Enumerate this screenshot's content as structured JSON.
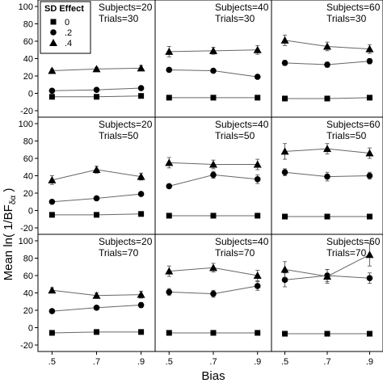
{
  "chart_data": {
    "type": "line",
    "xlabel": "Bias",
    "ylabel_prefix": "Mean ln( 1/BF",
    "ylabel_sub": "δα",
    "ylabel_suffix": " )",
    "x_ticks": [
      ".5",
      ".7",
      ".9"
    ],
    "x_values": [
      0.5,
      0.7,
      0.9
    ],
    "ylim": [
      -20,
      100
    ],
    "y_ticks": [
      -20,
      0,
      20,
      40,
      60,
      80,
      100
    ],
    "legend": {
      "title": "SD Effect",
      "entries": [
        {
          "label": "0",
          "marker": "square"
        },
        {
          "label": ".2",
          "marker": "circle"
        },
        {
          "label": ".4",
          "marker": "triangle"
        }
      ],
      "placement": "top-left"
    },
    "panels": [
      {
        "subjects_label": "Subjects=20",
        "trials_label": "Trials=30",
        "series": [
          {
            "marker": "square",
            "values": [
              -4,
              -4,
              -3
            ],
            "err": [
              1,
              1,
              1
            ]
          },
          {
            "marker": "circle",
            "values": [
              3,
              4,
              6
            ],
            "err": [
              1,
              1,
              1
            ]
          },
          {
            "marker": "triangle",
            "values": [
              26,
              28,
              29
            ],
            "err": [
              2,
              2,
              3
            ]
          }
        ]
      },
      {
        "subjects_label": "Subjects=40",
        "trials_label": "Trials=30",
        "series": [
          {
            "marker": "square",
            "values": [
              -5,
              -5,
              -5
            ],
            "err": [
              1,
              1,
              1
            ]
          },
          {
            "marker": "circle",
            "values": [
              27,
              26,
              19
            ],
            "err": [
              2,
              2,
              2
            ]
          },
          {
            "marker": "triangle",
            "values": [
              48,
              49,
              50
            ],
            "err": [
              6,
              4,
              5
            ]
          }
        ]
      },
      {
        "subjects_label": "Subjects=60",
        "trials_label": "Trials=30",
        "series": [
          {
            "marker": "square",
            "values": [
              -6,
              -6,
              -5
            ],
            "err": [
              1,
              1,
              1
            ]
          },
          {
            "marker": "circle",
            "values": [
              35,
              33,
              37
            ],
            "err": [
              3,
              3,
              3
            ]
          },
          {
            "marker": "triangle",
            "values": [
              61,
              54,
              51
            ],
            "err": [
              6,
              5,
              5
            ]
          }
        ]
      },
      {
        "subjects_label": "Subjects=20",
        "trials_label": "Trials=50",
        "series": [
          {
            "marker": "square",
            "values": [
              -5,
              -5,
              -4
            ],
            "err": [
              1,
              1,
              1
            ]
          },
          {
            "marker": "circle",
            "values": [
              10,
              14,
              19
            ],
            "err": [
              2,
              2,
              2
            ]
          },
          {
            "marker": "triangle",
            "values": [
              35,
              47,
              39
            ],
            "err": [
              5,
              4,
              4
            ]
          }
        ]
      },
      {
        "subjects_label": "Subjects=40",
        "trials_label": "Trials=50",
        "series": [
          {
            "marker": "square",
            "values": [
              -6,
              -6,
              -6
            ],
            "err": [
              1,
              1,
              1
            ]
          },
          {
            "marker": "circle",
            "values": [
              28,
              41,
              36
            ],
            "err": [
              2,
              4,
              5
            ]
          },
          {
            "marker": "triangle",
            "values": [
              55,
              53,
              53
            ],
            "err": [
              6,
              5,
              6
            ]
          }
        ]
      },
      {
        "subjects_label": "Subjects=60",
        "trials_label": "Trials=50",
        "series": [
          {
            "marker": "square",
            "values": [
              -7,
              -7,
              -7
            ],
            "err": [
              1,
              1,
              1
            ]
          },
          {
            "marker": "circle",
            "values": [
              44,
              39,
              40
            ],
            "err": [
              4,
              5,
              4
            ]
          },
          {
            "marker": "triangle",
            "values": [
              68,
              71,
              66
            ],
            "err": [
              9,
              6,
              6
            ]
          }
        ]
      },
      {
        "subjects_label": "Subjects=20",
        "trials_label": "Trials=70",
        "series": [
          {
            "marker": "square",
            "values": [
              -6,
              -5,
              -5
            ],
            "err": [
              1,
              1,
              1
            ]
          },
          {
            "marker": "circle",
            "values": [
              19,
              23,
              26
            ],
            "err": [
              2,
              2,
              3
            ]
          },
          {
            "marker": "triangle",
            "values": [
              43,
              37,
              38
            ],
            "err": [
              3,
              3,
              4
            ]
          }
        ]
      },
      {
        "subjects_label": "Subjects=40",
        "trials_label": "Trials=70",
        "series": [
          {
            "marker": "square",
            "values": [
              -6,
              -6,
              -6
            ],
            "err": [
              1,
              1,
              1
            ]
          },
          {
            "marker": "circle",
            "values": [
              41,
              39,
              48
            ],
            "err": [
              4,
              4,
              5
            ]
          },
          {
            "marker": "triangle",
            "values": [
              65,
              69,
              60
            ],
            "err": [
              6,
              5,
              6
            ]
          }
        ]
      },
      {
        "subjects_label": "Subjects=60",
        "trials_label": "Trials=70",
        "series": [
          {
            "marker": "square",
            "values": [
              -7,
              -7,
              -7
            ],
            "err": [
              1,
              1,
              1
            ]
          },
          {
            "marker": "circle",
            "values": [
              55,
              60,
              57
            ],
            "err": [
              8,
              7,
              6
            ]
          },
          {
            "marker": "triangle",
            "values": [
              67,
              59,
              84
            ],
            "err": [
              9,
              8,
              13
            ]
          }
        ]
      }
    ]
  }
}
